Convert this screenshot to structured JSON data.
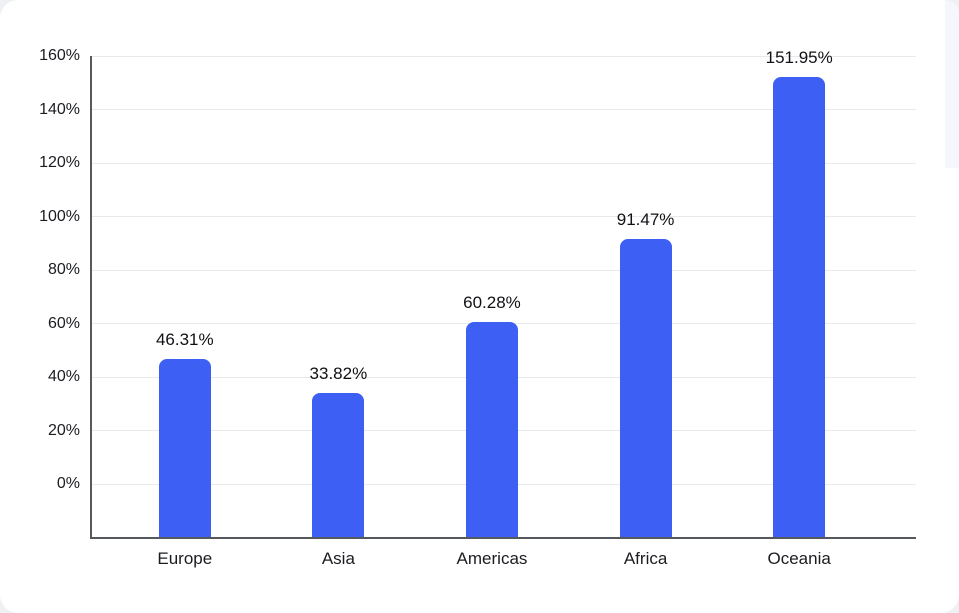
{
  "page": {
    "background_color": "#eff0f3",
    "card_color": "#ffffff"
  },
  "chart_data": {
    "type": "bar",
    "title": "",
    "xlabel": "",
    "ylabel": "",
    "categories": [
      "Europe",
      "Asia",
      "Americas",
      "Africa",
      "Oceania"
    ],
    "values": [
      46.31,
      33.82,
      60.28,
      91.47,
      151.95
    ],
    "value_labels": [
      "46.31%",
      "33.82%",
      "60.28%",
      "91.47%",
      "151.95%"
    ],
    "ytick_labels": [
      "0%",
      "20%",
      "40%",
      "60%",
      "80%",
      "100%",
      "120%",
      "140%",
      "160%"
    ],
    "ytick_values": [
      0,
      20,
      40,
      60,
      80,
      100,
      120,
      140,
      160
    ],
    "ylim": [
      -20,
      160
    ],
    "grid": "horizontal",
    "legend": "none",
    "bar_color": "#3d5ff3",
    "gridline_color": "#e8e9eb",
    "axis_color": "#55585c",
    "text_color": "#1a1c20"
  }
}
